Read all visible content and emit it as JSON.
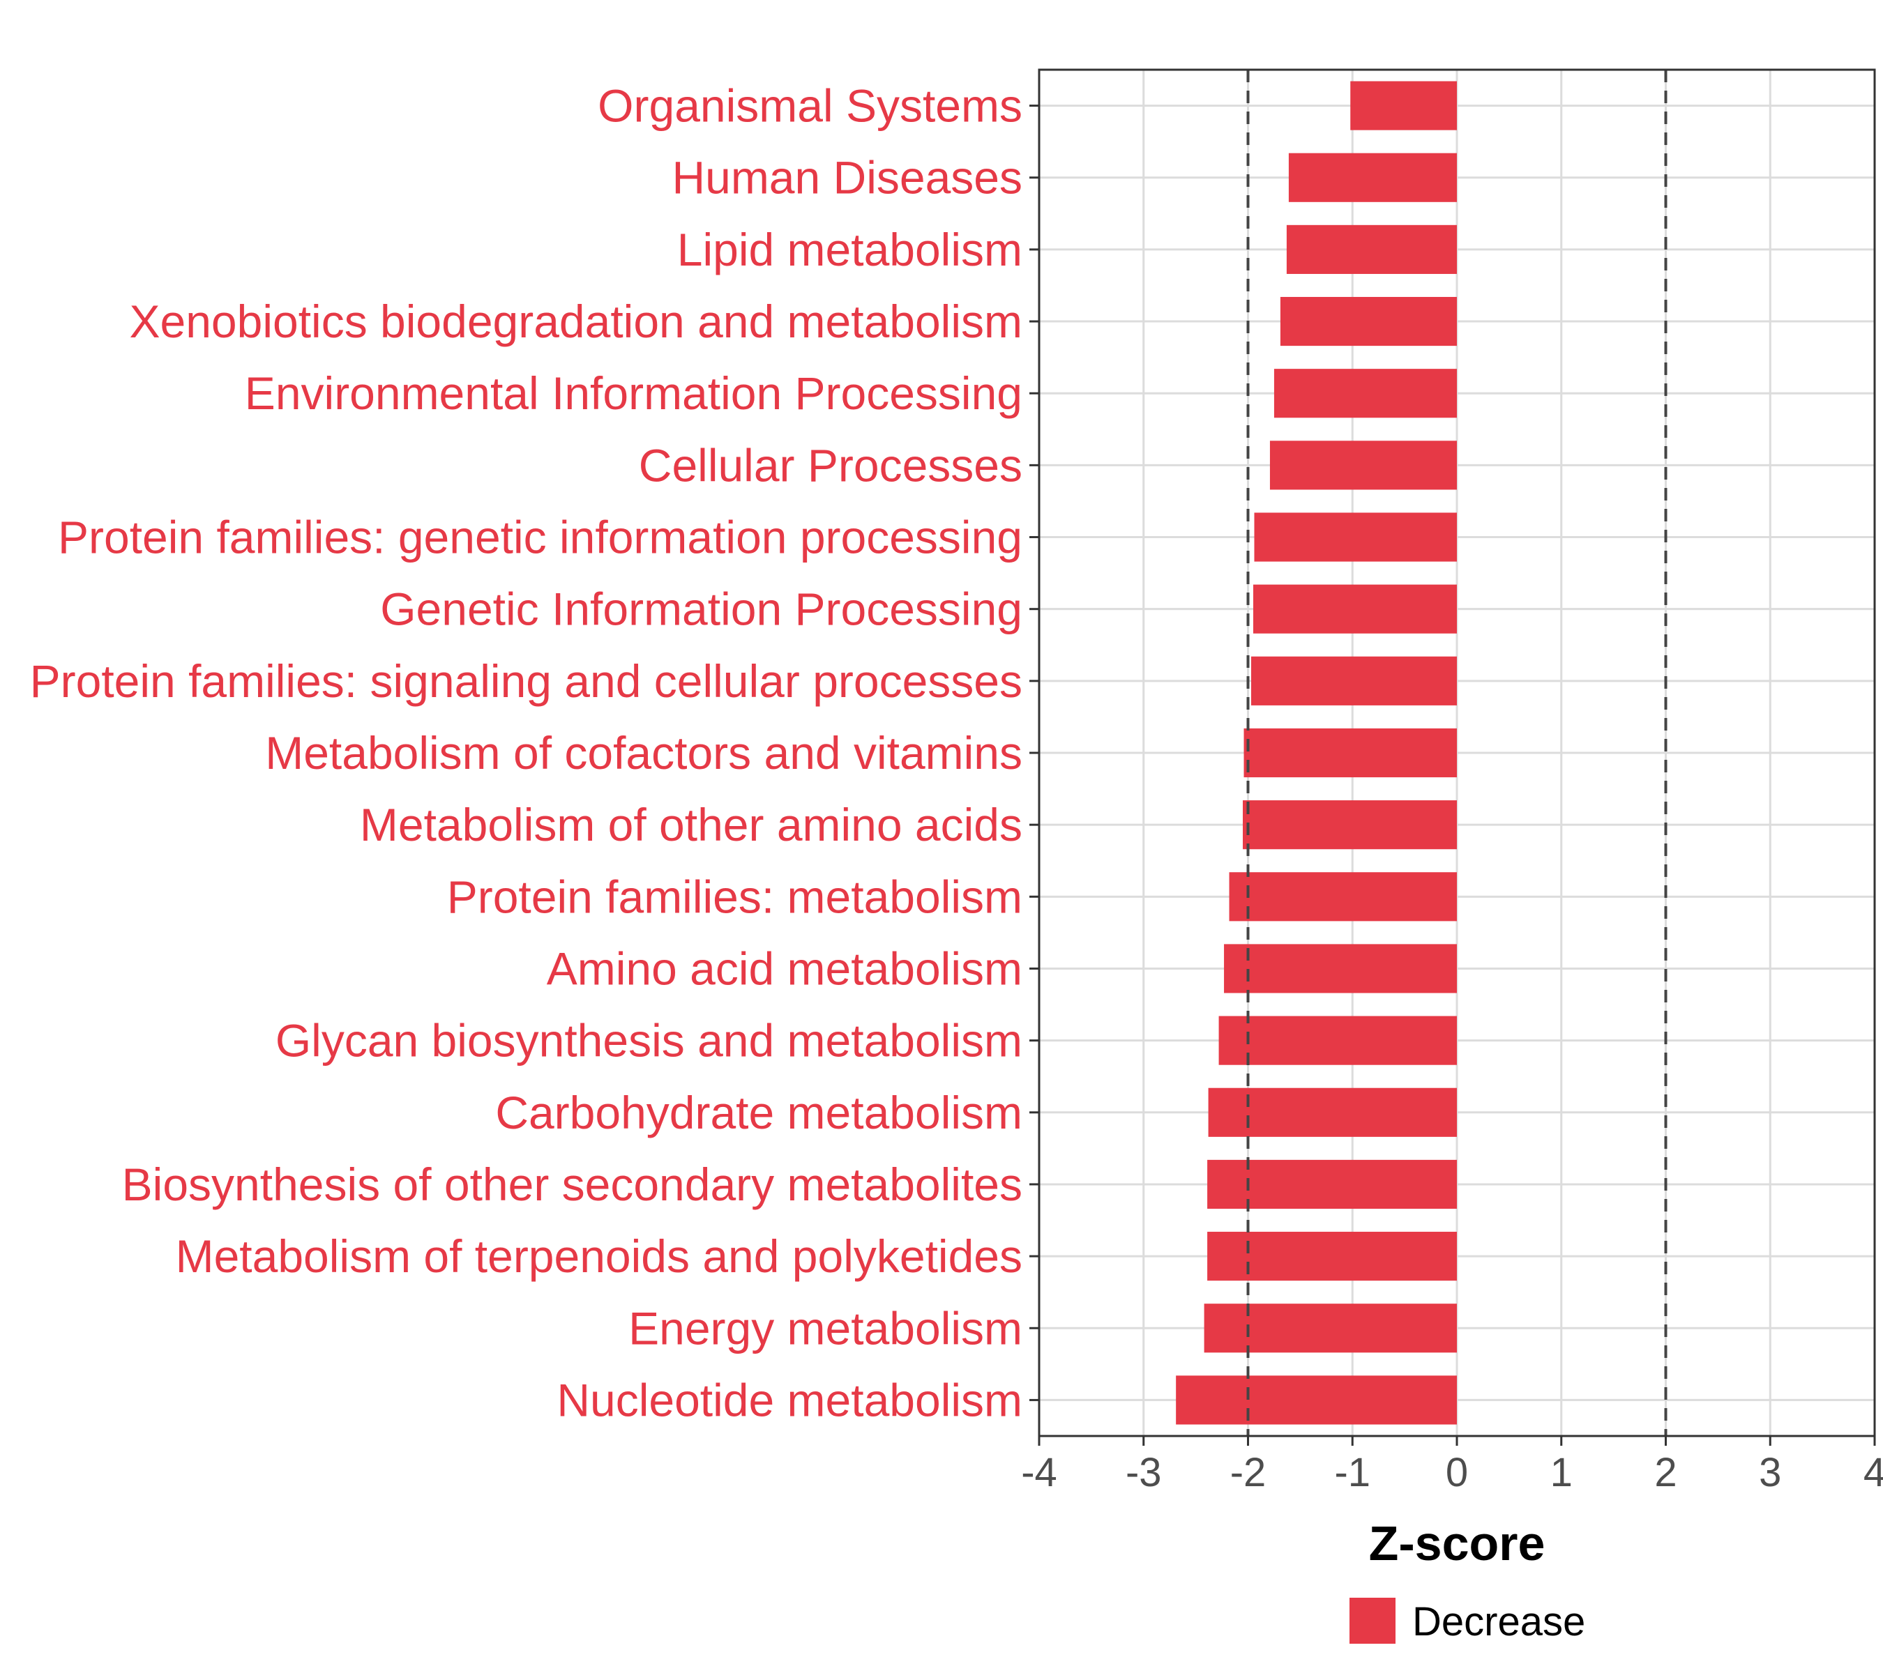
{
  "chart_data": {
    "type": "bar",
    "orientation": "horizontal",
    "categories": [
      "Organismal Systems",
      "Human Diseases",
      "Lipid metabolism",
      "Xenobiotics biodegradation and metabolism",
      "Environmental Information Processing",
      "Cellular Processes",
      "Protein families: genetic information processing",
      "Genetic Information Processing",
      "Protein families: signaling and cellular processes",
      "Metabolism of cofactors and vitamins",
      "Metabolism of other amino acids",
      "Protein families: metabolism",
      "Amino acid metabolism",
      "Glycan biosynthesis and metabolism",
      "Carbohydrate metabolism",
      "Biosynthesis of other secondary metabolites",
      "Metabolism of terpenoids and polyketides",
      "Energy metabolism",
      "Nucleotide metabolism"
    ],
    "series": [
      {
        "name": "Decrease",
        "color": "#e63946",
        "values": [
          -1.02,
          -1.61,
          -1.63,
          -1.69,
          -1.75,
          -1.79,
          -1.94,
          -1.95,
          -1.97,
          -2.04,
          -2.05,
          -2.18,
          -2.23,
          -2.28,
          -2.38,
          -2.39,
          -2.39,
          -2.42,
          -2.69
        ]
      }
    ],
    "xlabel": "Z-score",
    "ylabel": "",
    "title": "",
    "xlim": [
      -4,
      4
    ],
    "xticks": [
      "-4",
      "-3",
      "-2",
      "-1",
      "0",
      "1",
      "2",
      "3",
      "4"
    ],
    "threshold_lines": [
      -2,
      2
    ],
    "grid": true,
    "legend": {
      "position": "bottom",
      "entries": [
        "Decrease"
      ]
    },
    "label_color": "#e63946"
  }
}
